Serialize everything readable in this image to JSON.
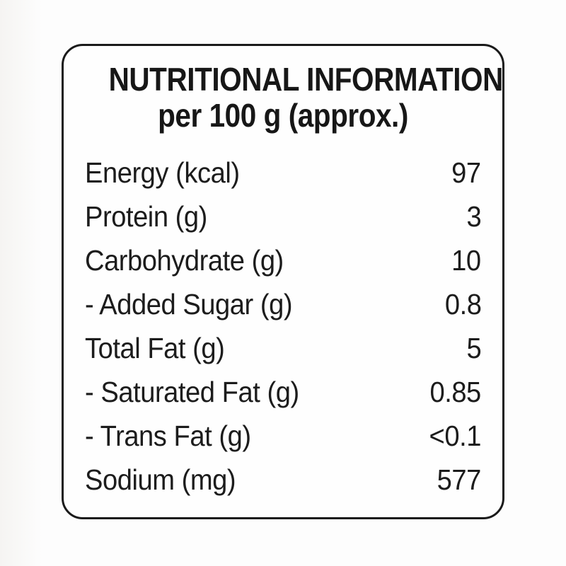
{
  "label": {
    "title_line1": "NUTRITIONAL INFORMATION",
    "title_line2": "per 100 g (approx.)",
    "rows": [
      {
        "name": "Energy (kcal)",
        "value": "97"
      },
      {
        "name": "Protein (g)",
        "value": "3"
      },
      {
        "name": "Carbohydrate (g)",
        "value": "10"
      },
      {
        "name": "- Added Sugar (g)",
        "value": "0.8"
      },
      {
        "name": "Total Fat (g)",
        "value": "5"
      },
      {
        "name": "- Saturated Fat (g)",
        "value": "0.85"
      },
      {
        "name": "- Trans Fat (g)",
        "value": "<0.1"
      },
      {
        "name": "Sodium (mg)",
        "value": "577"
      }
    ],
    "colors": {
      "text": "#1c1c1c",
      "border": "#1a1a1a",
      "box_background": "#fefefe",
      "page_background": "#fdfdfd"
    }
  }
}
